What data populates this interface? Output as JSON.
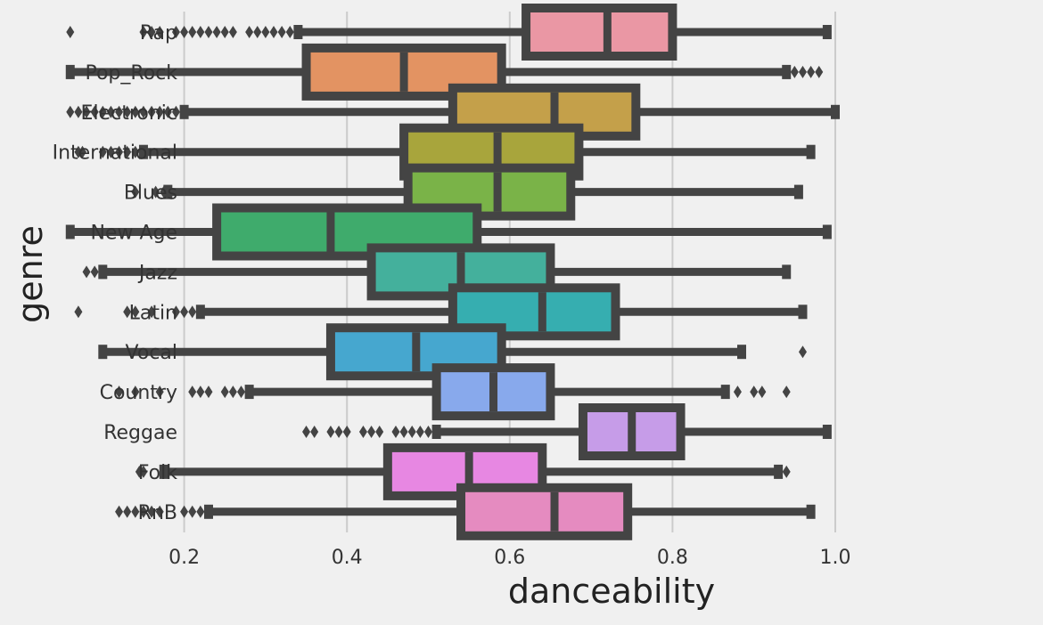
{
  "chart_data": {
    "type": "boxplot",
    "orientation": "horizontal",
    "xlabel": "danceability",
    "ylabel": "genre",
    "xlim": [
      0.0,
      1.0
    ],
    "xticks": [
      "0.2",
      "0.4",
      "0.6",
      "0.8",
      "1.0"
    ],
    "xtick_values": [
      0.2,
      0.4,
      0.6,
      0.8,
      1.0
    ],
    "grid": "vertical",
    "colors": {
      "background": "#f0f0f0",
      "grid": "#cbcbcb",
      "line": "#444444"
    },
    "categories": [
      "Rap",
      "Pop_Rock",
      "Electronic",
      "International",
      "Blues",
      "New Age",
      "Jazz",
      "Latin",
      "Vocal",
      "Country",
      "Reggae",
      "Folk",
      "RnB"
    ],
    "boxes": [
      {
        "genre": "Rap",
        "color": "#ea97a4",
        "whislo": 0.34,
        "q1": 0.62,
        "med": 0.72,
        "q3": 0.8,
        "whishi": 0.99,
        "fliers": [
          0.06,
          0.15,
          0.16,
          0.17,
          0.19,
          0.2,
          0.21,
          0.22,
          0.23,
          0.24,
          0.25,
          0.26,
          0.28,
          0.29,
          0.3,
          0.31,
          0.32,
          0.33
        ]
      },
      {
        "genre": "Pop_Rock",
        "color": "#e39362",
        "whislo": 0.06,
        "q1": 0.35,
        "med": 0.47,
        "q3": 0.59,
        "whishi": 0.94,
        "fliers": [
          0.95,
          0.96,
          0.97,
          0.98
        ]
      },
      {
        "genre": "Electronic",
        "color": "#c4a04a",
        "whislo": 0.2,
        "q1": 0.53,
        "med": 0.655,
        "q3": 0.755,
        "whishi": 1.0,
        "fliers": [
          0.06,
          0.07,
          0.08,
          0.09,
          0.1,
          0.11,
          0.12,
          0.13,
          0.14,
          0.15,
          0.16,
          0.17,
          0.18,
          0.19
        ]
      },
      {
        "genre": "International",
        "color": "#a8a53c",
        "whislo": 0.15,
        "q1": 0.47,
        "med": 0.585,
        "q3": 0.685,
        "whishi": 0.97,
        "fliers": [
          0.07,
          0.075,
          0.1,
          0.11,
          0.12,
          0.13,
          0.14
        ]
      },
      {
        "genre": "Blues",
        "color": "#7ab348",
        "whislo": 0.18,
        "q1": 0.475,
        "med": 0.585,
        "q3": 0.675,
        "whishi": 0.955,
        "fliers": [
          0.14,
          0.165,
          0.175
        ]
      },
      {
        "genre": "New Age",
        "color": "#3fab6c",
        "whislo": 0.06,
        "q1": 0.24,
        "med": 0.38,
        "q3": 0.56,
        "whishi": 0.99,
        "fliers": []
      },
      {
        "genre": "Jazz",
        "color": "#44b09c",
        "whislo": 0.1,
        "q1": 0.43,
        "med": 0.54,
        "q3": 0.65,
        "whishi": 0.94,
        "fliers": [
          0.08,
          0.09
        ]
      },
      {
        "genre": "Latin",
        "color": "#36aeb0",
        "whislo": 0.22,
        "q1": 0.53,
        "med": 0.64,
        "q3": 0.73,
        "whishi": 0.96,
        "fliers": [
          0.07,
          0.13,
          0.14,
          0.16,
          0.19,
          0.2,
          0.21
        ]
      },
      {
        "genre": "Vocal",
        "color": "#46a7cf",
        "whislo": 0.1,
        "q1": 0.38,
        "med": 0.485,
        "q3": 0.59,
        "whishi": 0.885,
        "fliers": [
          0.96
        ]
      },
      {
        "genre": "Country",
        "color": "#88a9ec",
        "whislo": 0.28,
        "q1": 0.51,
        "med": 0.58,
        "q3": 0.65,
        "whishi": 0.865,
        "fliers": [
          0.12,
          0.14,
          0.17,
          0.21,
          0.22,
          0.23,
          0.25,
          0.26,
          0.27,
          0.28,
          0.88,
          0.9,
          0.91,
          0.94
        ]
      },
      {
        "genre": "Reggae",
        "color": "#c69ce8",
        "whislo": 0.51,
        "q1": 0.69,
        "med": 0.75,
        "q3": 0.81,
        "whishi": 0.99,
        "fliers": [
          0.35,
          0.36,
          0.38,
          0.39,
          0.4,
          0.42,
          0.43,
          0.44,
          0.46,
          0.47,
          0.48,
          0.49,
          0.5
        ]
      },
      {
        "genre": "Folk",
        "color": "#e787e2",
        "whislo": 0.175,
        "q1": 0.45,
        "med": 0.55,
        "q3": 0.64,
        "whishi": 0.93,
        "fliers": [
          0.145,
          0.15,
          0.94
        ]
      },
      {
        "genre": "RnB",
        "color": "#e58bc0",
        "whislo": 0.23,
        "q1": 0.54,
        "med": 0.655,
        "q3": 0.745,
        "whishi": 0.97,
        "fliers": [
          0.12,
          0.13,
          0.14,
          0.15,
          0.16,
          0.17,
          0.2,
          0.21,
          0.22
        ]
      }
    ]
  }
}
